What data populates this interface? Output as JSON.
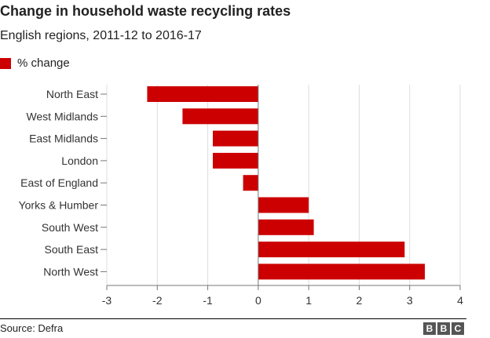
{
  "title": "Change in household waste recycling rates",
  "subtitle": "English regions, 2011-12 to 2016-17",
  "footer": {
    "source": "Source: Defra",
    "logo": [
      "B",
      "B",
      "C"
    ]
  },
  "colors": {
    "bar": "#cc0000",
    "grid": "#dddddd",
    "axis": "#777777",
    "text": "#333333"
  },
  "chart_data": {
    "type": "bar",
    "orientation": "horizontal",
    "title": "Change in household waste recycling rates",
    "subtitle": "English regions, 2011-12 to 2016-17",
    "legend": {
      "label": "% change",
      "position": "top-left"
    },
    "categories": [
      "North East",
      "West Midlands",
      "East Midlands",
      "London",
      "East of England",
      "Yorks & Humber",
      "South West",
      "South East",
      "North West"
    ],
    "series": [
      {
        "name": "% change",
        "values": [
          -2.2,
          -1.5,
          -0.9,
          -0.9,
          -0.3,
          1.0,
          1.1,
          2.9,
          3.3
        ]
      }
    ],
    "xlim": [
      -3,
      4
    ],
    "xticks": [
      -3,
      -2,
      -1,
      0,
      1,
      2,
      3,
      4
    ],
    "xlabel": "",
    "ylabel": "",
    "grid": true
  }
}
